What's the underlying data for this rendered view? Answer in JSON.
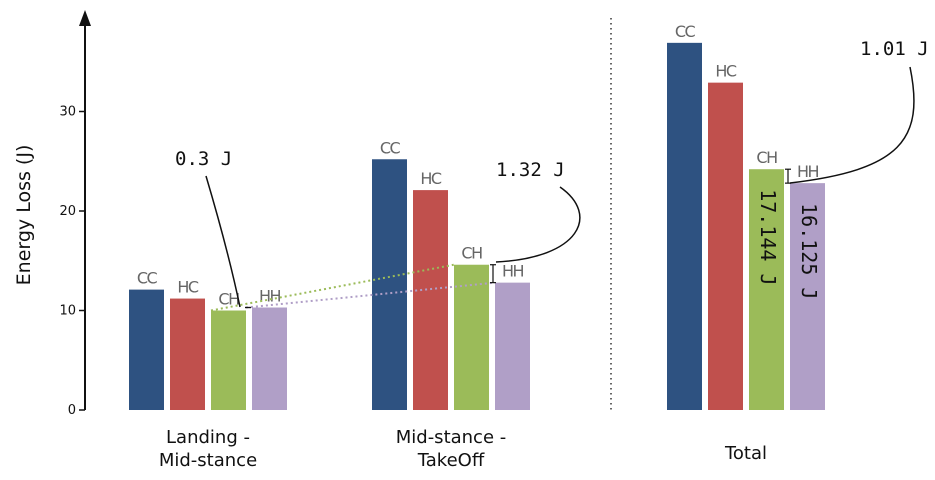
{
  "chart_data": {
    "type": "bar",
    "ylabel": "Energy Loss (J)",
    "ylim": [
      0,
      39
    ],
    "yticks": [
      0,
      10,
      20,
      30
    ],
    "categories": [
      "Landing -\nMid-stance",
      "Mid-stance -\nTakeOff",
      "Total"
    ],
    "series": [
      {
        "name": "CC",
        "color": "#2e5281",
        "values": [
          12.1,
          25.2,
          36.9
        ]
      },
      {
        "name": "HC",
        "color": "#c0504d",
        "values": [
          11.2,
          22.1,
          32.9
        ]
      },
      {
        "name": "CH",
        "color": "#9bbb59",
        "values": [
          10.0,
          14.6,
          24.2
        ]
      },
      {
        "name": "HH",
        "color": "#b09fc7",
        "values": [
          10.3,
          12.8,
          22.8
        ]
      }
    ],
    "annotations": [
      {
        "text": "0.3 J",
        "category": 0
      },
      {
        "text": "1.32 J",
        "category": 1
      },
      {
        "text": "1.01 J",
        "category": 2
      }
    ],
    "bar_labels": [
      {
        "series": "CH",
        "category": 2,
        "text": "17.144 J"
      },
      {
        "series": "HH",
        "category": 2,
        "text": "16.125 J"
      }
    ],
    "grid": false,
    "legend": "none"
  }
}
